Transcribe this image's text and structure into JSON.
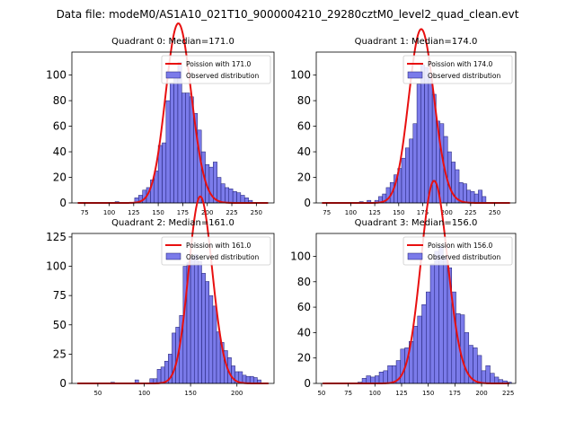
{
  "figure_title": "Data file: modeM0/AS1A10_021T10_9000004210_29280cztM0_level2_quad_clean.evt",
  "legend_labels": {
    "poisson_prefix": "Poission with ",
    "observed": "Observed distribution"
  },
  "colors": {
    "bar_fill": "#7b7bea",
    "bar_edge": "#1a1a6e",
    "poisson_line": "#e81010"
  },
  "chart_data": [
    {
      "type": "bar",
      "title": "Quadrant 0: Median=171.0",
      "median": 171.0,
      "poisson_label": "Poission with 171.0",
      "bin_width": 4,
      "xlim": [
        62,
        268
      ],
      "ylim": [
        0,
        118
      ],
      "xticks": [
        75,
        100,
        125,
        150,
        175,
        200,
        225,
        250
      ],
      "yticks": [
        0,
        20,
        40,
        60,
        80,
        100
      ],
      "bars": [
        [
          106,
          1
        ],
        [
          126,
          4
        ],
        [
          130,
          6
        ],
        [
          134,
          10
        ],
        [
          138,
          12
        ],
        [
          142,
          18
        ],
        [
          146,
          25
        ],
        [
          150,
          45
        ],
        [
          154,
          47
        ],
        [
          158,
          80
        ],
        [
          162,
          94
        ],
        [
          166,
          100
        ],
        [
          170,
          110
        ],
        [
          174,
          86
        ],
        [
          178,
          86
        ],
        [
          182,
          83
        ],
        [
          186,
          70
        ],
        [
          190,
          57
        ],
        [
          194,
          40
        ],
        [
          198,
          30
        ],
        [
          202,
          28
        ],
        [
          206,
          32
        ],
        [
          210,
          20
        ],
        [
          214,
          15
        ],
        [
          218,
          12
        ],
        [
          222,
          11
        ],
        [
          226,
          9
        ],
        [
          230,
          8
        ],
        [
          234,
          6
        ],
        [
          238,
          4
        ],
        [
          242,
          2
        ]
      ]
    },
    {
      "type": "bar",
      "title": "Quadrant 1: Median=174.0",
      "median": 174.0,
      "poisson_label": "Poission with 174.0",
      "bin_width": 4,
      "xlim": [
        64,
        272
      ],
      "ylim": [
        0,
        118
      ],
      "xticks": [
        75,
        100,
        125,
        150,
        175,
        200,
        225,
        250
      ],
      "yticks": [
        0,
        20,
        40,
        60,
        80,
        100
      ],
      "bars": [
        [
          109,
          1
        ],
        [
          117,
          2
        ],
        [
          125,
          2
        ],
        [
          129,
          5
        ],
        [
          133,
          7
        ],
        [
          137,
          12
        ],
        [
          141,
          16
        ],
        [
          145,
          22
        ],
        [
          149,
          27
        ],
        [
          153,
          35
        ],
        [
          157,
          43
        ],
        [
          161,
          50
        ],
        [
          165,
          62
        ],
        [
          169,
          93
        ],
        [
          173,
          108
        ],
        [
          177,
          106
        ],
        [
          181,
          100
        ],
        [
          185,
          85
        ],
        [
          189,
          64
        ],
        [
          193,
          62
        ],
        [
          197,
          52
        ],
        [
          201,
          40
        ],
        [
          205,
          32
        ],
        [
          209,
          26
        ],
        [
          213,
          16
        ],
        [
          217,
          15
        ],
        [
          221,
          10
        ],
        [
          225,
          9
        ],
        [
          229,
          7
        ],
        [
          233,
          10
        ],
        [
          237,
          5
        ]
      ]
    },
    {
      "type": "bar",
      "title": "Quadrant 2: Median=161.0",
      "median": 161.0,
      "poisson_label": "Poission with 161.0",
      "bin_width": 4,
      "xlim": [
        22,
        240
      ],
      "ylim": [
        0,
        128
      ],
      "xticks": [
        50,
        100,
        150,
        200
      ],
      "yticks": [
        0,
        25,
        50,
        75,
        100,
        125
      ],
      "bars": [
        [
          64,
          1
        ],
        [
          90,
          3
        ],
        [
          106,
          4
        ],
        [
          110,
          4
        ],
        [
          114,
          12
        ],
        [
          118,
          14
        ],
        [
          122,
          19
        ],
        [
          126,
          25
        ],
        [
          130,
          43
        ],
        [
          134,
          48
        ],
        [
          138,
          58
        ],
        [
          142,
          100
        ],
        [
          146,
          103
        ],
        [
          150,
          108
        ],
        [
          154,
          110
        ],
        [
          158,
          104
        ],
        [
          162,
          94
        ],
        [
          166,
          87
        ],
        [
          170,
          75
        ],
        [
          174,
          66
        ],
        [
          178,
          44
        ],
        [
          182,
          35
        ],
        [
          186,
          28
        ],
        [
          190,
          22
        ],
        [
          194,
          15
        ],
        [
          198,
          10
        ],
        [
          202,
          10
        ],
        [
          206,
          7
        ],
        [
          210,
          6
        ],
        [
          214,
          6
        ],
        [
          218,
          5
        ],
        [
          222,
          3
        ]
      ]
    },
    {
      "type": "bar",
      "title": "Quadrant 3: Median=156.0",
      "median": 156.0,
      "poisson_label": "Poission with 156.0",
      "bin_width": 4,
      "xlim": [
        45,
        232
      ],
      "ylim": [
        0,
        118
      ],
      "xticks": [
        50,
        75,
        100,
        125,
        150,
        175,
        200,
        225
      ],
      "yticks": [
        0,
        20,
        40,
        60,
        80,
        100
      ],
      "bars": [
        [
          84,
          1
        ],
        [
          88,
          4
        ],
        [
          92,
          6
        ],
        [
          96,
          5
        ],
        [
          100,
          6
        ],
        [
          104,
          9
        ],
        [
          108,
          10
        ],
        [
          112,
          14
        ],
        [
          116,
          14
        ],
        [
          120,
          18
        ],
        [
          124,
          27
        ],
        [
          128,
          28
        ],
        [
          132,
          33
        ],
        [
          136,
          45
        ],
        [
          140,
          53
        ],
        [
          144,
          62
        ],
        [
          148,
          72
        ],
        [
          152,
          94
        ],
        [
          156,
          104
        ],
        [
          160,
          108
        ],
        [
          164,
          100
        ],
        [
          168,
          91
        ],
        [
          172,
          72
        ],
        [
          176,
          55
        ],
        [
          180,
          54
        ],
        [
          184,
          40
        ],
        [
          188,
          30
        ],
        [
          192,
          28
        ],
        [
          196,
          22
        ],
        [
          200,
          10
        ],
        [
          204,
          14
        ],
        [
          208,
          8
        ],
        [
          212,
          5
        ],
        [
          216,
          3
        ],
        [
          220,
          2
        ],
        [
          224,
          1
        ]
      ]
    }
  ]
}
